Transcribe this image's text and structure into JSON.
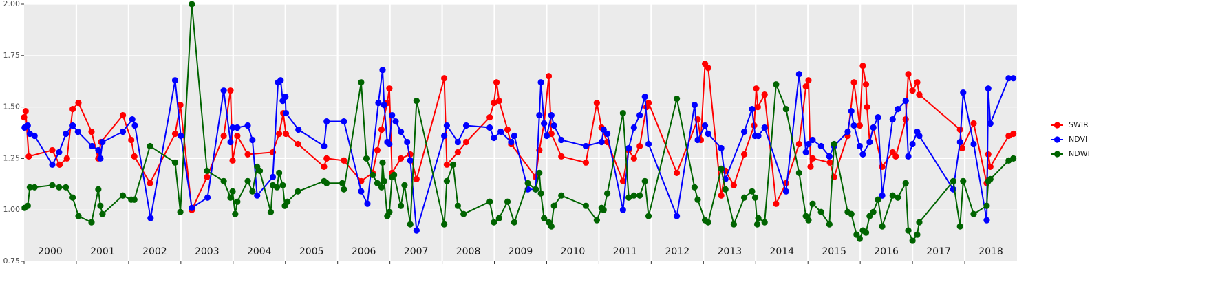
{
  "chart_data": {
    "type": "line",
    "xlim": [
      2000,
      2019
    ],
    "xticks": [
      2000,
      2001,
      2002,
      2003,
      2004,
      2005,
      2006,
      2007,
      2008,
      2009,
      2010,
      2011,
      2012,
      2013,
      2014,
      2015,
      2016,
      2017,
      2018
    ],
    "ylim": [
      0.75,
      2.0
    ],
    "yticks": [
      {
        "value": 0.75,
        "label": "0.75"
      },
      {
        "value": 1.0,
        "label": "1.00"
      },
      {
        "value": 1.25,
        "label": "1.25"
      },
      {
        "value": 1.5,
        "label": "1.50"
      },
      {
        "value": 1.75,
        "label": "1.75"
      },
      {
        "value": 2.0,
        "label": "2.00"
      }
    ],
    "grid": true,
    "legend": "right",
    "series": [
      {
        "name": "SWIR",
        "color": "#ff0000",
        "x": [
          2000.0,
          2000.03,
          2000.09,
          2000.54,
          2000.68,
          2000.82,
          2000.93,
          2001.04,
          2001.29,
          2001.42,
          2001.47,
          2001.89,
          2002.05,
          2002.11,
          2002.41,
          2002.89,
          2002.99,
          2003.21,
          2003.5,
          2003.82,
          2003.95,
          2003.99,
          2004.08,
          2004.28,
          2004.76,
          2004.88,
          2004.96,
          2005.01,
          2005.24,
          2005.74,
          2005.79,
          2006.12,
          2006.45,
          2006.67,
          2006.76,
          2006.84,
          2006.95,
          2006.99,
          2007.04,
          2007.21,
          2007.39,
          2007.51,
          2008.04,
          2008.09,
          2008.3,
          2008.46,
          2008.91,
          2008.99,
          2009.04,
          2009.09,
          2009.25,
          2009.32,
          2009.79,
          2009.86,
          2009.95,
          2010.04,
          2010.09,
          2010.28,
          2010.75,
          2010.96,
          2011.05,
          2011.16,
          2011.46,
          2011.57,
          2011.67,
          2011.78,
          2011.91,
          2011.95,
          2012.49,
          2012.89,
          2012.95,
          2013.03,
          2013.09,
          2013.34,
          2013.42,
          2013.58,
          2013.78,
          2013.97,
          2014.01,
          2014.04,
          2014.17,
          2014.39,
          2014.58,
          2014.83,
          2014.96,
          2015.01,
          2015.05,
          2015.09,
          2015.42,
          2015.5,
          2015.76,
          2015.88,
          2015.99,
          2016.05,
          2016.11,
          2016.13,
          2016.18,
          2016.25,
          2016.42,
          2016.62,
          2016.68,
          2016.87,
          2016.92,
          2017.0,
          2017.09,
          2017.13,
          2017.91,
          2017.95,
          2018.17,
          2018.42,
          2018.45,
          2018.49,
          2018.84,
          2018.93
        ],
        "values": [
          1.45,
          1.48,
          1.26,
          1.29,
          1.22,
          1.25,
          1.49,
          1.52,
          1.38,
          1.25,
          1.33,
          1.46,
          1.34,
          1.26,
          1.13,
          1.37,
          1.51,
          1.0,
          1.16,
          1.36,
          1.58,
          1.24,
          1.36,
          1.27,
          1.28,
          1.37,
          1.47,
          1.37,
          1.32,
          1.21,
          1.25,
          1.24,
          1.14,
          1.18,
          1.29,
          1.39,
          1.52,
          1.59,
          1.18,
          1.25,
          1.27,
          1.15,
          1.64,
          1.22,
          1.28,
          1.33,
          1.45,
          1.52,
          1.62,
          1.53,
          1.39,
          1.32,
          1.16,
          1.29,
          1.42,
          1.65,
          1.37,
          1.26,
          1.23,
          1.52,
          1.4,
          1.33,
          1.14,
          1.29,
          1.25,
          1.31,
          1.5,
          1.52,
          1.18,
          1.44,
          1.34,
          1.71,
          1.69,
          1.07,
          1.19,
          1.12,
          1.27,
          1.41,
          1.59,
          1.5,
          1.56,
          1.03,
          1.13,
          1.32,
          1.6,
          1.63,
          1.21,
          1.25,
          1.23,
          1.16,
          1.36,
          1.62,
          1.41,
          1.7,
          1.61,
          1.5,
          1.33,
          1.4,
          1.21,
          1.28,
          1.26,
          1.44,
          1.66,
          1.58,
          1.62,
          1.56,
          1.39,
          1.3,
          1.42,
          1.13,
          1.27,
          1.21,
          1.36,
          1.37
        ]
      },
      {
        "name": "NDVI",
        "color": "#0000ff",
        "x": [
          2000.01,
          2000.07,
          2000.11,
          2000.2,
          2000.54,
          2000.67,
          2000.8,
          2000.93,
          2001.03,
          2001.3,
          2001.42,
          2001.46,
          2001.5,
          2001.89,
          2002.07,
          2002.12,
          2002.42,
          2002.89,
          2003.0,
          2003.21,
          2003.51,
          2003.82,
          2003.95,
          2003.99,
          2004.08,
          2004.28,
          2004.37,
          2004.46,
          2004.76,
          2004.86,
          2004.91,
          2004.95,
          2005.0,
          2005.01,
          2005.25,
          2005.74,
          2005.79,
          2006.12,
          2006.45,
          2006.57,
          2006.78,
          2006.86,
          2006.89,
          2006.95,
          2006.99,
          2007.04,
          2007.11,
          2007.21,
          2007.33,
          2007.39,
          2007.51,
          2008.04,
          2008.09,
          2008.3,
          2008.46,
          2008.91,
          2008.99,
          2009.12,
          2009.32,
          2009.38,
          2009.64,
          2009.79,
          2009.86,
          2009.89,
          2009.95,
          2010.0,
          2010.09,
          2010.14,
          2010.28,
          2010.75,
          2011.05,
          2011.09,
          2011.16,
          2011.46,
          2011.57,
          2011.67,
          2011.78,
          2011.88,
          2011.95,
          2012.49,
          2012.83,
          2012.89,
          2013.03,
          2013.09,
          2013.34,
          2013.42,
          2013.78,
          2013.93,
          2013.99,
          2014.05,
          2014.17,
          2014.58,
          2014.83,
          2014.96,
          2015.01,
          2015.09,
          2015.25,
          2015.41,
          2015.5,
          2015.76,
          2015.83,
          2015.88,
          2015.99,
          2016.05,
          2016.18,
          2016.25,
          2016.34,
          2016.42,
          2016.62,
          2016.72,
          2016.87,
          2016.92,
          2017.0,
          2017.09,
          2017.13,
          2017.78,
          2017.91,
          2017.97,
          2018.17,
          2018.42,
          2018.45,
          2018.49,
          2018.84,
          2018.93
        ],
        "values": [
          1.4,
          1.41,
          1.37,
          1.36,
          1.22,
          1.28,
          1.37,
          1.41,
          1.38,
          1.31,
          1.29,
          1.25,
          1.33,
          1.38,
          1.44,
          1.41,
          0.96,
          1.63,
          1.36,
          1.01,
          1.06,
          1.58,
          1.33,
          1.4,
          1.4,
          1.41,
          1.34,
          1.07,
          1.16,
          1.62,
          1.63,
          1.53,
          1.55,
          1.47,
          1.39,
          1.31,
          1.43,
          1.43,
          1.09,
          1.03,
          1.52,
          1.68,
          1.51,
          1.33,
          1.32,
          1.46,
          1.43,
          1.38,
          1.33,
          1.24,
          0.9,
          1.36,
          1.41,
          1.33,
          1.41,
          1.4,
          1.35,
          1.38,
          1.33,
          1.36,
          1.1,
          1.1,
          1.46,
          1.62,
          1.42,
          1.36,
          1.46,
          1.41,
          1.34,
          1.31,
          1.33,
          1.39,
          1.37,
          1.0,
          1.3,
          1.4,
          1.46,
          1.55,
          1.32,
          0.97,
          1.51,
          1.34,
          1.41,
          1.37,
          1.3,
          1.15,
          1.38,
          1.49,
          1.36,
          1.36,
          1.4,
          1.09,
          1.66,
          1.28,
          1.32,
          1.34,
          1.31,
          1.26,
          1.31,
          1.38,
          1.48,
          1.41,
          1.31,
          1.27,
          1.33,
          1.4,
          1.45,
          1.07,
          1.44,
          1.49,
          1.53,
          1.26,
          1.32,
          1.38,
          1.36,
          1.1,
          1.33,
          1.57,
          1.32,
          0.95,
          1.59,
          1.42,
          1.64,
          1.64
        ]
      },
      {
        "name": "NDWI",
        "color": "#006400",
        "x": [
          2000.01,
          2000.07,
          2000.11,
          2000.2,
          2000.54,
          2000.67,
          2000.8,
          2000.93,
          2001.04,
          2001.29,
          2001.42,
          2001.46,
          2001.5,
          2001.89,
          2002.05,
          2002.11,
          2002.41,
          2002.89,
          2002.99,
          2003.21,
          2003.5,
          2003.82,
          2003.95,
          2003.99,
          2004.04,
          2004.08,
          2004.28,
          2004.37,
          2004.46,
          2004.51,
          2004.72,
          2004.76,
          2004.84,
          2004.88,
          2004.95,
          2004.99,
          2005.04,
          2005.24,
          2005.74,
          2005.79,
          2006.09,
          2006.12,
          2006.45,
          2006.55,
          2006.67,
          2006.76,
          2006.84,
          2006.86,
          2006.89,
          2006.95,
          2006.99,
          2007.04,
          2007.08,
          2007.21,
          2007.28,
          2007.39,
          2007.51,
          2008.04,
          2008.09,
          2008.21,
          2008.3,
          2008.41,
          2008.91,
          2008.99,
          2009.09,
          2009.25,
          2009.38,
          2009.64,
          2009.79,
          2009.86,
          2009.89,
          2009.95,
          2010.04,
          2010.09,
          2010.14,
          2010.28,
          2010.75,
          2010.96,
          2011.05,
          2011.09,
          2011.16,
          2011.46,
          2011.57,
          2011.67,
          2011.78,
          2011.88,
          2011.95,
          2012.49,
          2012.83,
          2012.89,
          2013.03,
          2013.09,
          2013.34,
          2013.42,
          2013.58,
          2013.78,
          2013.93,
          2013.99,
          2014.03,
          2014.05,
          2014.17,
          2014.39,
          2014.58,
          2014.83,
          2014.96,
          2015.01,
          2015.09,
          2015.25,
          2015.41,
          2015.5,
          2015.76,
          2015.83,
          2015.93,
          2015.99,
          2016.05,
          2016.11,
          2016.18,
          2016.25,
          2016.34,
          2016.42,
          2016.62,
          2016.72,
          2016.87,
          2016.92,
          2017.0,
          2017.09,
          2017.13,
          2017.78,
          2017.91,
          2017.97,
          2018.17,
          2018.42,
          2018.45,
          2018.49,
          2018.84,
          2018.93
        ],
        "values": [
          1.01,
          1.02,
          1.11,
          1.11,
          1.12,
          1.11,
          1.11,
          1.06,
          0.97,
          0.94,
          1.1,
          1.02,
          0.98,
          1.07,
          1.05,
          1.05,
          1.31,
          1.23,
          0.99,
          2.0,
          1.19,
          1.14,
          1.06,
          1.09,
          0.98,
          1.04,
          1.14,
          1.09,
          1.21,
          1.19,
          0.99,
          1.12,
          1.11,
          1.18,
          1.12,
          1.02,
          1.04,
          1.09,
          1.14,
          1.13,
          1.13,
          1.1,
          1.62,
          1.25,
          1.17,
          1.13,
          1.11,
          1.23,
          1.14,
          0.97,
          0.99,
          1.16,
          1.17,
          1.02,
          1.12,
          0.93,
          1.53,
          0.93,
          1.14,
          1.22,
          1.02,
          0.98,
          1.04,
          0.94,
          0.96,
          1.04,
          0.94,
          1.13,
          1.1,
          1.18,
          1.08,
          0.96,
          0.94,
          0.92,
          1.02,
          1.07,
          1.02,
          0.95,
          1.01,
          1.0,
          1.08,
          1.47,
          1.06,
          1.07,
          1.07,
          1.14,
          0.97,
          1.54,
          1.11,
          1.05,
          0.95,
          0.94,
          1.2,
          1.1,
          0.93,
          1.06,
          1.09,
          1.06,
          0.93,
          0.96,
          0.94,
          1.61,
          1.49,
          1.18,
          0.97,
          0.95,
          1.03,
          0.99,
          0.93,
          1.32,
          0.99,
          0.98,
          0.88,
          0.86,
          0.9,
          0.89,
          0.97,
          0.99,
          1.05,
          0.92,
          1.07,
          1.06,
          1.13,
          0.9,
          0.85,
          0.88,
          0.94,
          1.14,
          0.92,
          1.14,
          0.98,
          1.02,
          1.14,
          1.15,
          1.24,
          1.25
        ]
      }
    ]
  }
}
